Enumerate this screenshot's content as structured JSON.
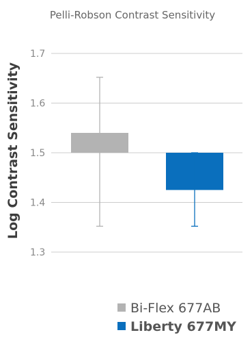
{
  "chart_data": {
    "type": "bar",
    "title": "Pelli-Robson Contrast Sensitivity",
    "xlabel": "",
    "ylabel": "Log Contrast Sensitivity",
    "ylim": [
      1.3,
      1.7
    ],
    "yticks": [
      "1.7",
      "1.6",
      "1.5",
      "1.4",
      "1.3"
    ],
    "baseline": 1.5,
    "grid": true,
    "legend_position": "bottom-right",
    "series": [
      {
        "name": "Bi-Flex 677AB",
        "value": 1.54,
        "error_low": 1.352,
        "error_high": 1.652,
        "color": "#b3b3b3"
      },
      {
        "name": "Liberty 677MY",
        "value": 1.425,
        "error_low": 1.352,
        "error_high": 1.5,
        "color": "#0a6fbd"
      }
    ]
  },
  "colors": {
    "grid": "#cccccc",
    "tick_text": "#888888",
    "title_text": "#666666",
    "ylabel_text": "#3d3d3d"
  }
}
